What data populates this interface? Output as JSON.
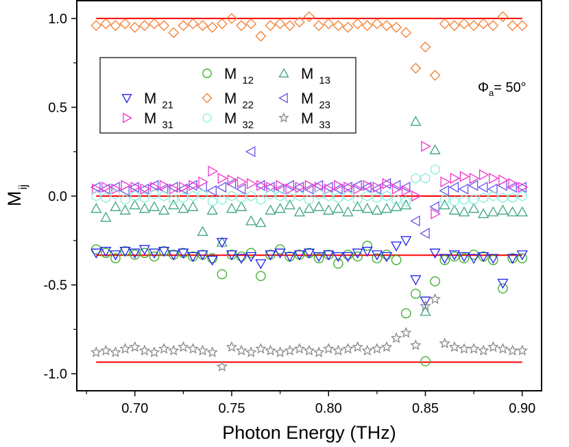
{
  "chart_data": {
    "type": "scatter",
    "title": "",
    "xlabel": "Photon Energy (THz)",
    "ylabel": "M",
    "ylabel_sub": "ij",
    "xlim": [
      0.67,
      0.91
    ],
    "ylim": [
      -1.096,
      1.1
    ],
    "xticks": [
      0.7,
      0.75,
      0.8,
      0.85,
      0.9
    ],
    "xtick_labels": [
      "0.70",
      "0.75",
      "0.80",
      "0.85",
      "0.90"
    ],
    "yticks": [
      -1.0,
      -0.5,
      0.0,
      0.5,
      1.0
    ],
    "ytick_labels": [
      "-1.0",
      "-0.5",
      "0.0",
      "0.5",
      "1.0"
    ],
    "annotation": {
      "symbol": "Φ",
      "sub": "a",
      "text": "= 50°"
    },
    "legend_position": "top-left",
    "reference_lines": {
      "color": "#ff0000",
      "x_range": [
        0.68,
        0.9
      ],
      "values": [
        1.0,
        0.0,
        -0.333,
        -0.935
      ]
    },
    "x": [
      0.68,
      0.685,
      0.69,
      0.695,
      0.7,
      0.705,
      0.71,
      0.715,
      0.72,
      0.725,
      0.73,
      0.735,
      0.74,
      0.745,
      0.75,
      0.755,
      0.76,
      0.765,
      0.77,
      0.775,
      0.78,
      0.785,
      0.79,
      0.795,
      0.8,
      0.805,
      0.81,
      0.815,
      0.82,
      0.825,
      0.83,
      0.835,
      0.84,
      0.845,
      0.85,
      0.855,
      0.86,
      0.865,
      0.87,
      0.875,
      0.88,
      0.885,
      0.89,
      0.895,
      0.9
    ],
    "series": [
      {
        "name": "M",
        "sub": "12",
        "marker": "circle",
        "color": "#33aa22",
        "values": [
          -0.3,
          -0.32,
          -0.35,
          -0.31,
          -0.33,
          -0.32,
          -0.34,
          -0.31,
          -0.33,
          -0.32,
          -0.34,
          -0.33,
          -0.35,
          -0.44,
          -0.33,
          -0.34,
          -0.32,
          -0.45,
          -0.33,
          -0.3,
          -0.34,
          -0.33,
          -0.32,
          -0.35,
          -0.33,
          -0.38,
          -0.33,
          -0.34,
          -0.28,
          -0.35,
          -0.33,
          -0.36,
          -0.66,
          -0.55,
          -0.93,
          -0.48,
          -0.36,
          -0.34,
          -0.35,
          -0.33,
          -0.34,
          -0.36,
          -0.52,
          -0.35,
          -0.35
        ]
      },
      {
        "name": "M",
        "sub": "13",
        "marker": "triangle-up",
        "color": "#3aa381",
        "values": [
          -0.07,
          -0.12,
          -0.06,
          -0.08,
          -0.05,
          -0.07,
          -0.06,
          -0.08,
          -0.05,
          -0.07,
          -0.06,
          -0.2,
          -0.08,
          -0.26,
          -0.07,
          -0.06,
          -0.14,
          -0.15,
          -0.08,
          -0.07,
          -0.05,
          -0.09,
          -0.07,
          -0.06,
          -0.08,
          -0.07,
          -0.09,
          -0.06,
          -0.07,
          -0.08,
          -0.07,
          -0.06,
          -0.05,
          0.42,
          -0.65,
          0.26,
          -0.05,
          -0.08,
          -0.09,
          -0.07,
          -0.1,
          -0.09,
          -0.08,
          -0.09,
          -0.09
        ]
      },
      {
        "name": "M",
        "sub": "21",
        "marker": "triangle-down",
        "color": "#2020ee",
        "values": [
          -0.32,
          -0.31,
          -0.33,
          -0.31,
          -0.32,
          -0.3,
          -0.32,
          -0.31,
          -0.33,
          -0.32,
          -0.34,
          -0.33,
          -0.36,
          -0.26,
          -0.33,
          -0.35,
          -0.34,
          -0.38,
          -0.33,
          -0.32,
          -0.34,
          -0.33,
          -0.32,
          -0.34,
          -0.33,
          -0.34,
          -0.34,
          -0.32,
          -0.31,
          -0.33,
          -0.34,
          -0.28,
          -0.25,
          -0.47,
          -0.59,
          -0.32,
          -0.35,
          -0.33,
          -0.34,
          -0.35,
          -0.34,
          -0.35,
          -0.49,
          -0.35,
          -0.33
        ]
      },
      {
        "name": "M",
        "sub": "22",
        "marker": "diamond",
        "color": "#f47a2a",
        "values": [
          0.96,
          0.97,
          0.96,
          0.97,
          0.95,
          0.96,
          0.97,
          0.96,
          0.92,
          0.96,
          0.97,
          0.96,
          0.95,
          0.97,
          1.0,
          0.96,
          0.97,
          0.9,
          0.96,
          0.97,
          0.96,
          0.98,
          1.01,
          0.96,
          0.97,
          0.96,
          0.95,
          0.97,
          0.96,
          0.97,
          0.96,
          0.95,
          0.92,
          0.72,
          0.84,
          0.68,
          0.97,
          0.96,
          0.97,
          0.96,
          0.97,
          0.96,
          1.01,
          0.96,
          0.96
        ]
      },
      {
        "name": "M",
        "sub": "23",
        "marker": "triangle-left",
        "color": "#6655ee",
        "values": [
          0.05,
          0.04,
          0.05,
          0.03,
          0.05,
          0.04,
          0.06,
          0.04,
          0.05,
          0.04,
          0.06,
          0.05,
          0.03,
          0.05,
          0.07,
          0.04,
          0.25,
          0.06,
          0.05,
          0.04,
          0.06,
          0.05,
          0.04,
          0.06,
          0.05,
          0.04,
          0.05,
          0.06,
          0.05,
          0.04,
          0.07,
          0.06,
          0.05,
          -0.14,
          -0.21,
          -0.06,
          0.03,
          0.05,
          0.04,
          0.06,
          0.05,
          0.04,
          0.06,
          0.05,
          0.05
        ]
      },
      {
        "name": "M",
        "sub": "31",
        "marker": "triangle-right",
        "color": "#ee33cc",
        "values": [
          0.04,
          0.05,
          0.04,
          0.06,
          0.05,
          0.04,
          0.05,
          0.06,
          0.04,
          0.05,
          0.06,
          0.08,
          0.14,
          0.1,
          0.09,
          0.08,
          0.07,
          0.06,
          0.05,
          0.06,
          0.04,
          0.05,
          0.06,
          0.05,
          0.04,
          0.06,
          0.05,
          0.04,
          0.06,
          0.05,
          0.07,
          0.04,
          0.03,
          0.0,
          0.28,
          -0.1,
          0.08,
          0.1,
          0.11,
          0.1,
          0.12,
          0.1,
          0.09,
          0.07,
          0.05
        ]
      },
      {
        "name": "M",
        "sub": "32",
        "marker": "hexagon",
        "color": "#88eedd",
        "values": [
          0.0,
          -0.01,
          0.01,
          -0.02,
          0.0,
          -0.01,
          0.01,
          0.0,
          -0.02,
          -0.01,
          0.0,
          0.01,
          -0.03,
          -0.02,
          0.0,
          -0.01,
          0.0,
          -0.02,
          0.01,
          0.0,
          -0.01,
          0.0,
          -0.02,
          0.01,
          0.0,
          -0.01,
          0.0,
          -0.02,
          0.0,
          -0.01,
          0.0,
          -0.02,
          -0.03,
          0.1,
          0.1,
          0.15,
          -0.02,
          -0.03,
          -0.02,
          -0.02,
          -0.01,
          0.0,
          -0.01,
          -0.01,
          0.0
        ]
      },
      {
        "name": "M",
        "sub": "33",
        "marker": "star",
        "color": "#888888",
        "values": [
          -0.88,
          -0.87,
          -0.88,
          -0.86,
          -0.85,
          -0.87,
          -0.88,
          -0.86,
          -0.87,
          -0.85,
          -0.86,
          -0.87,
          -0.88,
          -0.96,
          -0.85,
          -0.87,
          -0.88,
          -0.86,
          -0.87,
          -0.88,
          -0.87,
          -0.86,
          -0.87,
          -0.88,
          -0.86,
          -0.87,
          -0.86,
          -0.85,
          -0.87,
          -0.86,
          -0.85,
          -0.8,
          -0.77,
          -0.84,
          -0.62,
          -0.58,
          -0.83,
          -0.85,
          -0.86,
          -0.86,
          -0.87,
          -0.85,
          -0.86,
          -0.87,
          -0.87
        ]
      }
    ],
    "legend_layout": [
      [
        "",
        "M12",
        "M13"
      ],
      [
        "M21",
        "M22",
        "M23"
      ],
      [
        "M31",
        "M32",
        "M33"
      ]
    ]
  }
}
